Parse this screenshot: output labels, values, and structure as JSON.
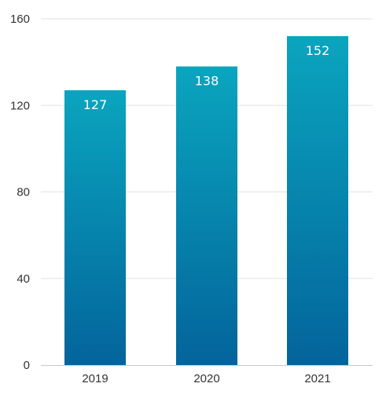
{
  "chart_data": {
    "type": "bar",
    "title": "",
    "xlabel": "",
    "ylabel": "",
    "categories": [
      "2019",
      "2020",
      "2021"
    ],
    "values": [
      127,
      138,
      152
    ],
    "data_labels": [
      "127",
      "138",
      "152"
    ],
    "ylim": [
      0,
      160
    ],
    "yticks": [
      0,
      40,
      80,
      120,
      160
    ],
    "ytick_labels": [
      "0",
      "40",
      "80",
      "120",
      "160"
    ],
    "grid": true,
    "legend": "none",
    "colors": {
      "bar_top": "#0aa5bf",
      "bar_bottom": "#03649b",
      "grid": "#e2e2e2",
      "axis": "#c8c8c8",
      "tick_text": "#333333",
      "value_text": "#ffffff"
    }
  }
}
